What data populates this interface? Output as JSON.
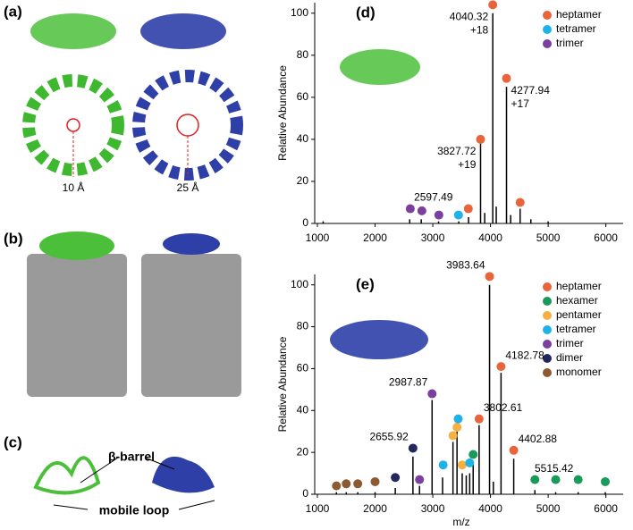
{
  "figure": {
    "panel_a": "(a)",
    "panel_b": "(b)",
    "panel_c": "(c)",
    "pore_left": "10 Å",
    "pore_right": "25 Å",
    "beta_barrel": "β-barrel",
    "mobile_loop": "mobile loop"
  },
  "chart_data": [
    {
      "type": "spectrum",
      "panel": "(d)",
      "y_label": "Relative Abundance",
      "xlim": [
        1000,
        6300
      ],
      "ylim": [
        0,
        105
      ],
      "xticks": [
        1000,
        2000,
        3000,
        4000,
        5000,
        6000
      ],
      "yticks": [
        0,
        20,
        40,
        60,
        80,
        100
      ],
      "spectrum": {
        "color": "#000000",
        "x": [
          1100,
          2600,
          2800,
          3100,
          3450,
          3620,
          3828,
          3900,
          4040,
          4100,
          4278,
          4350,
          4514,
          4700,
          5000
        ],
        "values": [
          1,
          2,
          2,
          1,
          1,
          3,
          38,
          5,
          100,
          8,
          65,
          4,
          7,
          2,
          1
        ]
      },
      "series": [
        {
          "name": "heptamer",
          "color": "#e8643a",
          "x": [
            3616,
            3828,
            4040,
            4278,
            4514
          ],
          "values": [
            7,
            40,
            104,
            69,
            10
          ]
        },
        {
          "name": "tetramer",
          "color": "#1fb2e8",
          "x": [
            3446
          ],
          "values": [
            4
          ]
        },
        {
          "name": "trimer",
          "color": "#7b3f9e",
          "x": [
            2610,
            2811,
            3105
          ],
          "values": [
            7,
            6,
            4
          ]
        }
      ],
      "peak_labels": [
        {
          "x": 4040.32,
          "y": 104,
          "label": "4040.32",
          "charge": "+18"
        },
        {
          "x": 4277.94,
          "y": 69,
          "label": "4277.94",
          "charge": "+17"
        },
        {
          "x": 3827.72,
          "y": 40,
          "label": "3827.72",
          "charge": "+19"
        },
        {
          "x": 2597.49,
          "y": 7,
          "label": "2597.49"
        }
      ]
    },
    {
      "type": "spectrum",
      "panel": "(e)",
      "y_label": "Relative Abundance",
      "x_label": "m/z",
      "xlim": [
        1000,
        6300
      ],
      "ylim": [
        0,
        105
      ],
      "xticks": [
        1000,
        2000,
        3000,
        4000,
        5000,
        6000
      ],
      "yticks": [
        0,
        20,
        40,
        60,
        80,
        100
      ],
      "spectrum": {
        "color": "#000000",
        "x": [
          1330,
          1500,
          1700,
          2000,
          2350,
          2656,
          2770,
          2988,
          3170,
          3350,
          3420,
          3510,
          3580,
          3640,
          3700,
          3803,
          3984,
          4050,
          4183,
          4403,
          4770,
          5130,
          5520,
          5990
        ],
        "values": [
          1,
          1,
          1,
          1,
          3,
          18,
          4,
          45,
          8,
          25,
          30,
          10,
          9,
          10,
          15,
          33,
          100,
          6,
          58,
          17,
          2,
          1,
          1,
          1
        ]
      },
      "series": [
        {
          "name": "heptamer",
          "color": "#e8643a",
          "x": [
            3803,
            3984,
            4183,
            4403
          ],
          "values": [
            36,
            104,
            61,
            21
          ]
        },
        {
          "name": "hexamer",
          "color": "#1a9a5a",
          "x": [
            3700,
            4770,
            5130,
            5520,
            5990
          ],
          "values": [
            19,
            7,
            7,
            7,
            6
          ]
        },
        {
          "name": "pentamer",
          "color": "#f5b041",
          "x": [
            3350,
            3420,
            3510
          ],
          "values": [
            28,
            32,
            14
          ]
        },
        {
          "name": "tetramer",
          "color": "#1fb2e8",
          "x": [
            3180,
            3440,
            3640
          ],
          "values": [
            14,
            36,
            15
          ]
        },
        {
          "name": "trimer",
          "color": "#7b3f9e",
          "x": [
            2988,
            2770
          ],
          "values": [
            48,
            7
          ]
        },
        {
          "name": "dimer",
          "color": "#24265e",
          "x": [
            2656,
            2350
          ],
          "values": [
            22,
            8
          ]
        },
        {
          "name": "monomer",
          "color": "#8c5a32",
          "x": [
            1330,
            1500,
            1700,
            2000
          ],
          "values": [
            4,
            5,
            5,
            6
          ]
        }
      ],
      "peak_labels": [
        {
          "x": 3983.64,
          "y": 104,
          "label": "3983.64"
        },
        {
          "x": 4182.78,
          "y": 61,
          "label": "4182.78"
        },
        {
          "x": 2987.87,
          "y": 48,
          "label": "2987.87"
        },
        {
          "x": 3802.61,
          "y": 36,
          "label": "3802.61"
        },
        {
          "x": 2655.92,
          "y": 22,
          "label": "2655.92"
        },
        {
          "x": 4402.88,
          "y": 21,
          "label": "4402.88"
        },
        {
          "x": 5515.42,
          "y": 7,
          "label": "5515.42"
        }
      ]
    }
  ]
}
